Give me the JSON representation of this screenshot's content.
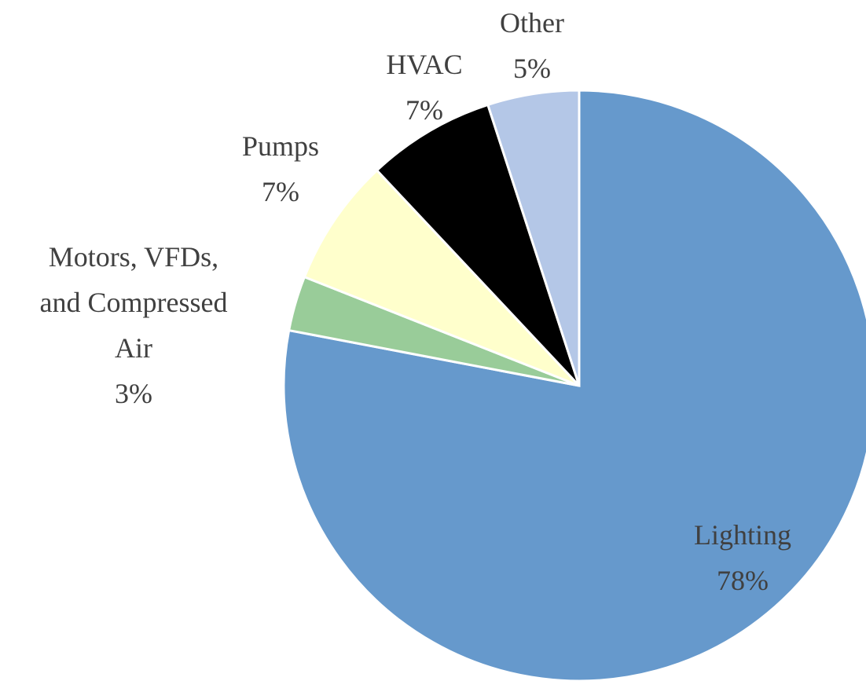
{
  "chart_data": {
    "type": "pie",
    "categories": [
      "Lighting",
      "Motors, VFDs, and Compressed Air",
      "Pumps",
      "HVAC",
      "Other"
    ],
    "values": [
      78,
      3,
      7,
      7,
      5
    ],
    "value_labels": [
      "78%",
      "3%",
      "7%",
      "7%",
      "5%"
    ],
    "colors": [
      "#6699cc",
      "#99cc99",
      "#ffffcc",
      "#000000",
      "#b4c7e7"
    ]
  }
}
